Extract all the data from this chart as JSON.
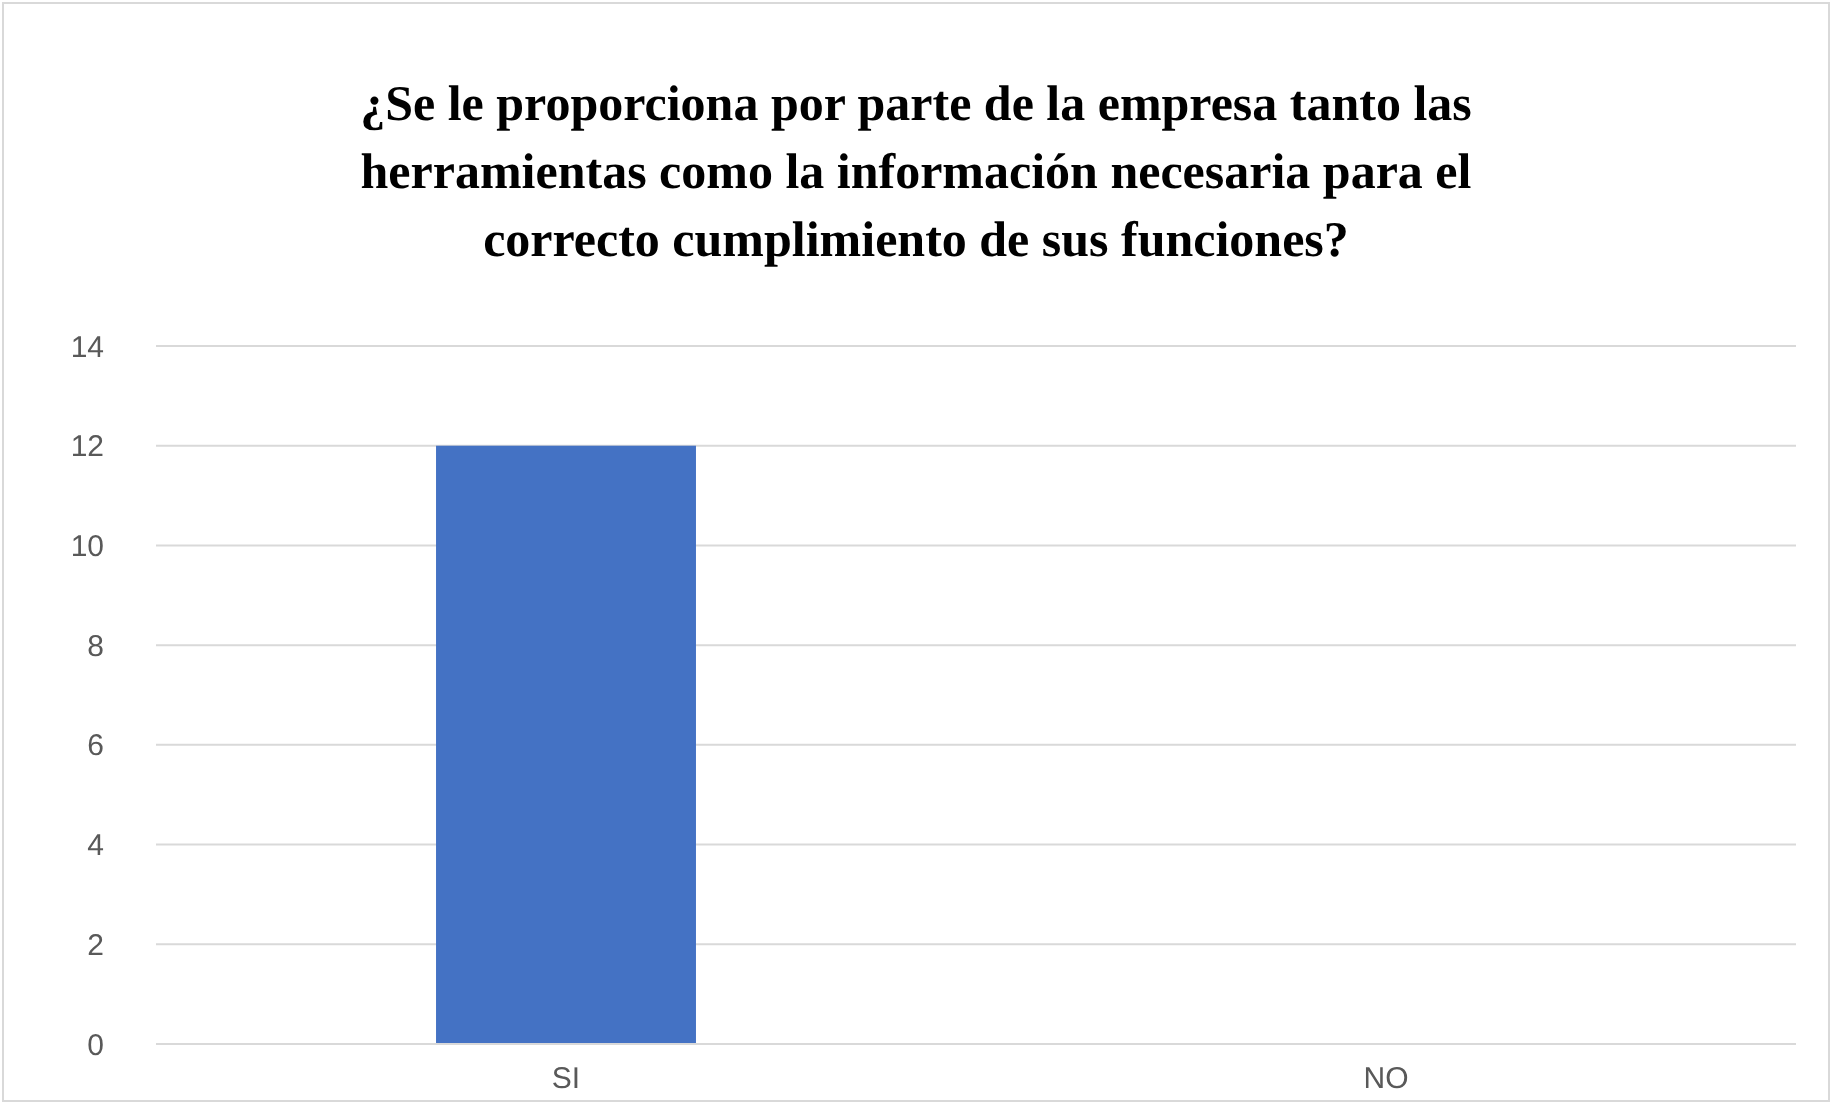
{
  "chart_data": {
    "type": "bar",
    "title": "¿Se le proporciona por parte de la empresa tanto las herramientas como la información necesaria para el correcto cumplimiento de sus funciones?",
    "categories": [
      "SI",
      "NO"
    ],
    "values": [
      12,
      0
    ],
    "color": "#4472c4",
    "ylim": [
      0,
      14
    ],
    "yticks": [
      0,
      2,
      4,
      6,
      8,
      10,
      12,
      14
    ],
    "grid": "y"
  }
}
